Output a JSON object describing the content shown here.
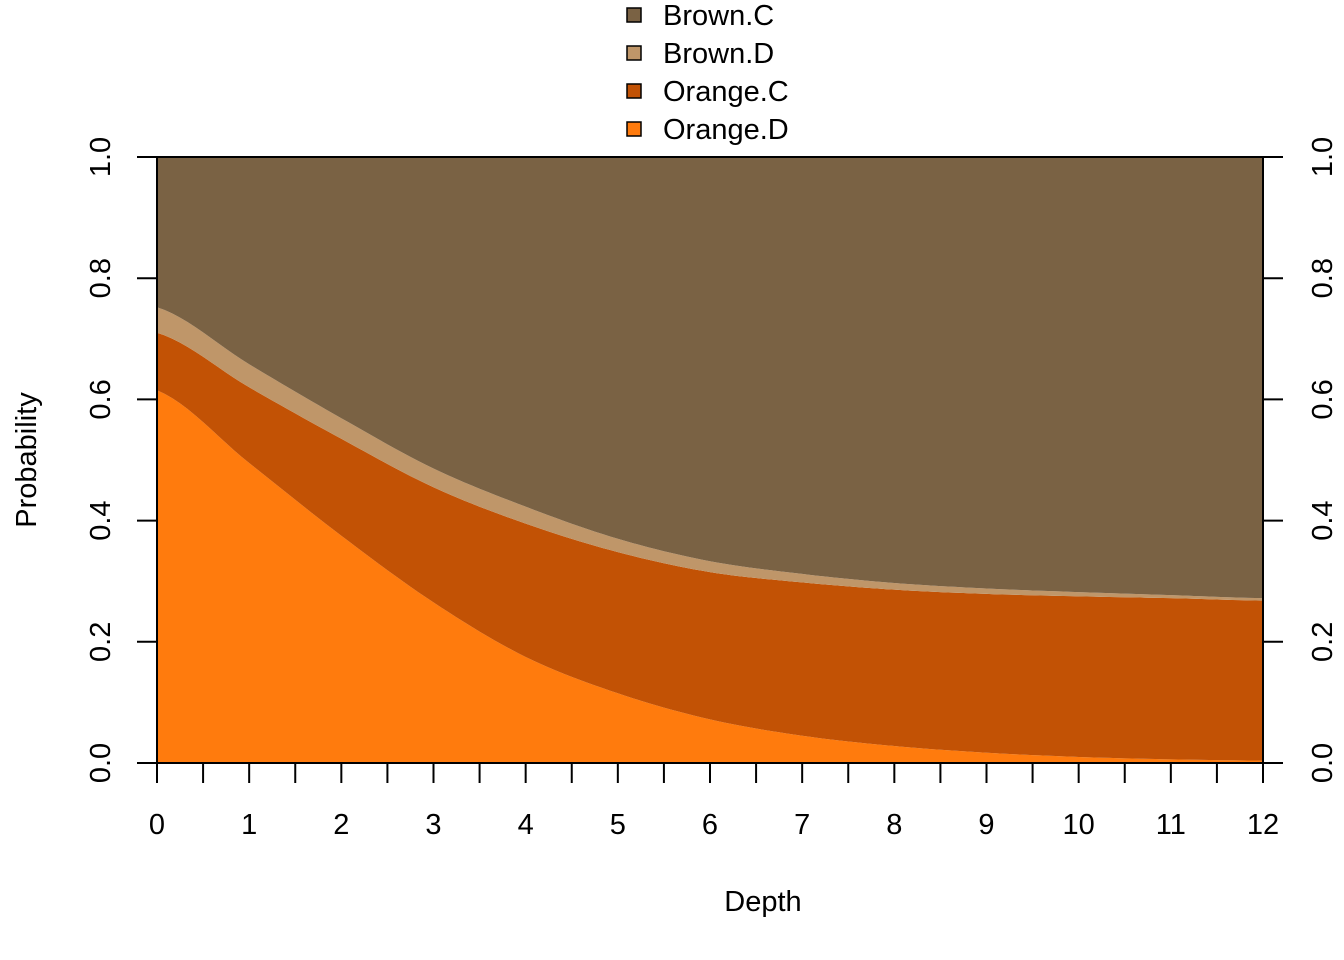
{
  "chart_data": {
    "type": "area",
    "stacked": true,
    "xlabel": "Depth",
    "ylabel": "Probability",
    "xlim": [
      0,
      12
    ],
    "ylim": [
      0,
      1
    ],
    "x_ticks": [
      0,
      1,
      2,
      3,
      4,
      5,
      6,
      7,
      8,
      9,
      10,
      11,
      12
    ],
    "x_tick_labels": [
      "0",
      "1",
      "2",
      "3",
      "4",
      "5",
      "6",
      "7",
      "8",
      "9",
      "10",
      "11",
      "12"
    ],
    "y_ticks": [
      0,
      0.2,
      0.4,
      0.6,
      0.8,
      1.0
    ],
    "y_tick_labels": [
      "0.0",
      "0.2",
      "0.4",
      "0.6",
      "0.8",
      "1.0"
    ],
    "right_axis": true,
    "grid": false,
    "legend_position": "top-center",
    "x": [
      0,
      1,
      2,
      3,
      4,
      5,
      6,
      7,
      8,
      9,
      10,
      11,
      12
    ],
    "series": [
      {
        "name": "Orange.D",
        "color": "#FF7B0D",
        "values": [
          0.615,
          0.495,
          0.375,
          0.265,
          0.175,
          0.115,
          0.072,
          0.045,
          0.028,
          0.017,
          0.01,
          0.006,
          0.004
        ]
      },
      {
        "name": "Orange.C",
        "color": "#C25205",
        "values": [
          0.095,
          0.125,
          0.16,
          0.19,
          0.22,
          0.233,
          0.243,
          0.253,
          0.258,
          0.262,
          0.265,
          0.266,
          0.264
        ]
      },
      {
        "name": "Brown.D",
        "color": "#BF9669",
        "values": [
          0.042,
          0.038,
          0.034,
          0.031,
          0.028,
          0.022,
          0.018,
          0.014,
          0.011,
          0.009,
          0.007,
          0.005,
          0.004
        ]
      },
      {
        "name": "Brown.C",
        "color": "#7A6244",
        "values": [
          0.248,
          0.342,
          0.431,
          0.514,
          0.577,
          0.63,
          0.667,
          0.688,
          0.703,
          0.712,
          0.718,
          0.723,
          0.728
        ]
      }
    ],
    "legend": [
      {
        "name": "Brown.C",
        "color": "#7A6244"
      },
      {
        "name": "Brown.D",
        "color": "#BF9669"
      },
      {
        "name": "Orange.C",
        "color": "#C25205"
      },
      {
        "name": "Orange.D",
        "color": "#FF7B0D"
      }
    ]
  }
}
